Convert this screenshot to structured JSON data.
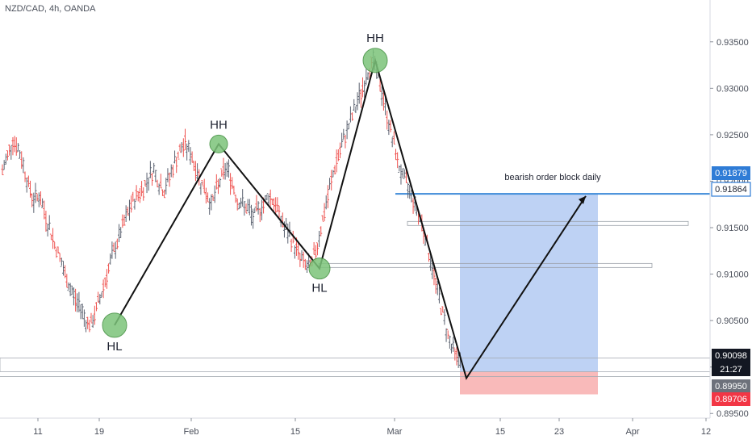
{
  "header": {
    "symbol_title": "NZD/CAD, 4h, OANDA"
  },
  "colors": {
    "up": "#26a69a",
    "down": "#ef5350",
    "bar": "#5b6270",
    "target_zone": "#b7cdf3",
    "stop_zone": "#f8b2b2",
    "order_block_line": "#3b8ad8",
    "marker_fill": "#7cc47a",
    "price_tag_blue": "#2f7cd6",
    "price_tag_black": "#131722",
    "price_tag_gray": "#6d717b",
    "price_tag_red": "#f23645"
  },
  "chart_data": {
    "type": "ohlc",
    "x_ticks": [
      "11",
      "19",
      "Feb",
      "15",
      "Mar",
      "15",
      "23",
      "Apr",
      "12"
    ],
    "y_ticks": [
      "0.93500",
      "0.93000",
      "0.92500",
      "0.92000",
      "0.91500",
      "0.91000",
      "0.90500",
      "0.90000",
      "0.89500"
    ],
    "ylim": [
      0.8945,
      0.9395
    ],
    "swing_points": [
      {
        "label": "HL",
        "price": 0.9045
      },
      {
        "label": "HH",
        "price": 0.924
      },
      {
        "label": "HL",
        "price": 0.9106
      },
      {
        "label": "HH",
        "price": 0.933
      }
    ],
    "projected_path": [
      0.933,
      0.8988,
      0.9184
    ],
    "annotation": {
      "text": "bearish order block daily",
      "price": 0.91864
    },
    "zones": [
      {
        "type": "target",
        "from": 0.8995,
        "to": 0.91864
      },
      {
        "type": "stop",
        "from": 0.89706,
        "to": 0.8995
      }
    ],
    "price_tags": [
      {
        "value": "0.91879",
        "style": "blue"
      },
      {
        "value": "0.91864",
        "style": "blue-outline"
      },
      {
        "value": "0.90098",
        "style": "black"
      },
      {
        "value": "21:27",
        "style": "black"
      },
      {
        "value": "0.89950",
        "style": "gray"
      },
      {
        "value": "0.89706",
        "style": "red"
      }
    ],
    "series": [
      {
        "type": "ohlc",
        "values": [
          0.921,
          0.9228,
          0.9245,
          0.9235,
          0.9218,
          0.9195,
          0.918,
          0.9185,
          0.9168,
          0.915,
          0.9132,
          0.9118,
          0.9098,
          0.9085,
          0.9072,
          0.9065,
          0.905,
          0.9045,
          0.9062,
          0.908,
          0.91,
          0.9118,
          0.9135,
          0.915,
          0.9165,
          0.9178,
          0.9186,
          0.9192,
          0.9205,
          0.9212,
          0.9198,
          0.919,
          0.9205,
          0.922,
          0.9232,
          0.924,
          0.923,
          0.9215,
          0.92,
          0.9188,
          0.9175,
          0.919,
          0.9205,
          0.9215,
          0.9198,
          0.918,
          0.9175,
          0.917,
          0.916,
          0.917,
          0.9175,
          0.9185,
          0.9178,
          0.9165,
          0.915,
          0.9142,
          0.913,
          0.9118,
          0.911,
          0.9106,
          0.9125,
          0.915,
          0.9175,
          0.92,
          0.9222,
          0.9238,
          0.9255,
          0.927,
          0.9285,
          0.93,
          0.9318,
          0.933,
          0.931,
          0.9288,
          0.9262,
          0.9238,
          0.9215,
          0.92,
          0.919,
          0.9175,
          0.916,
          0.914,
          0.9115,
          0.909,
          0.9065,
          0.9042,
          0.9022,
          0.901
        ]
      }
    ]
  }
}
